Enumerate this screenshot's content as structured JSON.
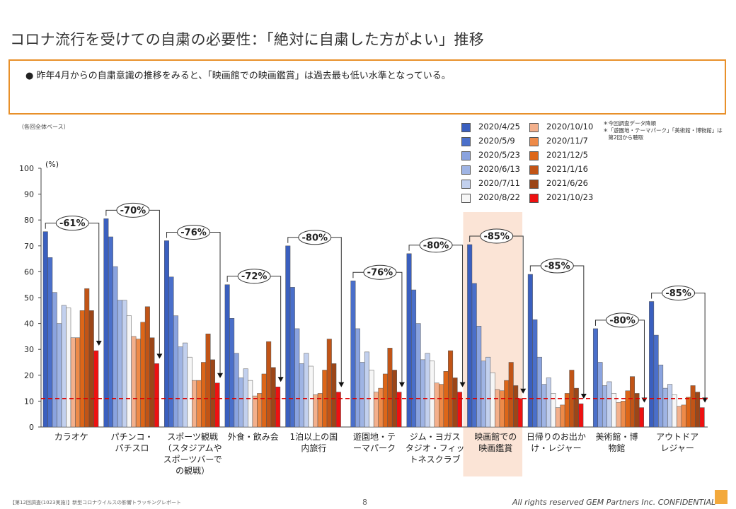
{
  "title": "コロナ流行を受けての自粛の必要性：「絶対に自粛した方がよい」推移",
  "bullet": "昨年4月からの自粛意識の推移をみると、「映画館での映画鑑賞」は過去最も低い水準となっている。",
  "base_note": "（各回全体ベース）",
  "notes": [
    "＊今回調査データ降順",
    "＊「遊園地・テーマパーク」「美術館・博物館」は",
    "　第2回から聴取"
  ],
  "footer": {
    "source": "【第12回調査(1023実施)】新型コロナウイルスの影響トラッキングレポート",
    "page": "8",
    "copyright": "All rights reserved GEM Partners Inc. CONFIDENTIAL"
  },
  "colors": {
    "series": [
      "#3a5fbf",
      "#4a6fca",
      "#8aa3df",
      "#9fb4e4",
      "#c2d0ee",
      "#f6f6f6",
      "#f3b08c",
      "#ee8a48",
      "#dd6618",
      "#c15416",
      "#9c4618",
      "#ee1111"
    ],
    "highlight": "#fbe4d6",
    "reference_line": "#dd0000"
  },
  "chart_data": {
    "type": "bar",
    "unit": "(%)",
    "ylim": [
      0,
      100
    ],
    "yticks": [
      0,
      10,
      20,
      30,
      40,
      50,
      60,
      70,
      80,
      90,
      100
    ],
    "reference_value": 11,
    "highlight_category_index": 7,
    "series_names": [
      "2020/4/25",
      "2020/5/9",
      "2020/5/23",
      "2020/6/13",
      "2020/7/11",
      "2020/8/22",
      "2020/10/10",
      "2020/11/7",
      "2021/12/5",
      "2021/1/16",
      "2021/6/26",
      "2021/10/23"
    ],
    "categories": [
      {
        "label": [
          "カラオケ"
        ],
        "change": "-61%",
        "values": [
          75.5,
          65.5,
          52,
          40,
          47,
          46,
          34.5,
          34.5,
          45,
          53.5,
          45,
          29.5
        ]
      },
      {
        "label": [
          "パチンコ・",
          "パチスロ"
        ],
        "change": "-70%",
        "values": [
          80.5,
          73.5,
          62,
          49,
          49,
          43,
          35,
          34,
          40.5,
          46.5,
          34.5,
          24.5
        ]
      },
      {
        "label": [
          "スポーツ観戦",
          "（スタジアムや",
          "スポーツバーで",
          "の観戦）"
        ],
        "change": "-76%",
        "values": [
          72,
          58,
          43,
          31,
          32.5,
          27,
          18,
          18,
          25,
          36,
          26,
          17
        ]
      },
      {
        "label": [
          "外食・飲み会"
        ],
        "change": "-72%",
        "values": [
          55,
          42,
          28.5,
          19,
          22.5,
          18,
          12,
          13,
          20.5,
          33,
          23,
          15.5
        ]
      },
      {
        "label": [
          "1泊以上の国",
          "内旅行"
        ],
        "change": "-80%",
        "values": [
          70,
          54,
          38,
          24.5,
          28.5,
          23.5,
          12.5,
          13,
          22,
          34,
          24.5,
          13.5
        ]
      },
      {
        "label": [
          "遊園地・テ",
          "ーマパーク"
        ],
        "change": "-76%",
        "values": [
          null,
          56.5,
          38,
          25,
          29,
          22,
          13.5,
          15,
          20.5,
          30.5,
          22,
          13.5
        ]
      },
      {
        "label": [
          "ジム・ヨガス",
          "タジオ・フィッ",
          "トネスクラブ"
        ],
        "change": "-80%",
        "values": [
          67,
          53,
          40,
          26,
          28.5,
          25.5,
          17,
          16.5,
          21.5,
          29.5,
          19,
          13.5
        ]
      },
      {
        "label": [
          "映画館での",
          "映画鑑賞"
        ],
        "change": "-85%",
        "values": [
          70.5,
          55.5,
          39,
          25.5,
          27,
          21,
          14.5,
          14,
          18,
          25,
          16,
          11
        ]
      },
      {
        "label": [
          "日帰りのお出か",
          "け・レジャー"
        ],
        "change": "-85%",
        "values": [
          59,
          41.5,
          27,
          16.5,
          19,
          13,
          7.5,
          8.5,
          13,
          22,
          15,
          9
        ]
      },
      {
        "label": [
          "美術館・博",
          "物館"
        ],
        "change": "-80%",
        "values": [
          null,
          38,
          25,
          16,
          17.5,
          13,
          9.5,
          10,
          14,
          19.5,
          13,
          7.5
        ]
      },
      {
        "label": [
          "アウトドア",
          "レジャー"
        ],
        "change": "-85%",
        "values": [
          48.5,
          35.5,
          24,
          15,
          16.5,
          12.5,
          8,
          8.5,
          11.5,
          16,
          13.5,
          7.5
        ]
      }
    ]
  }
}
